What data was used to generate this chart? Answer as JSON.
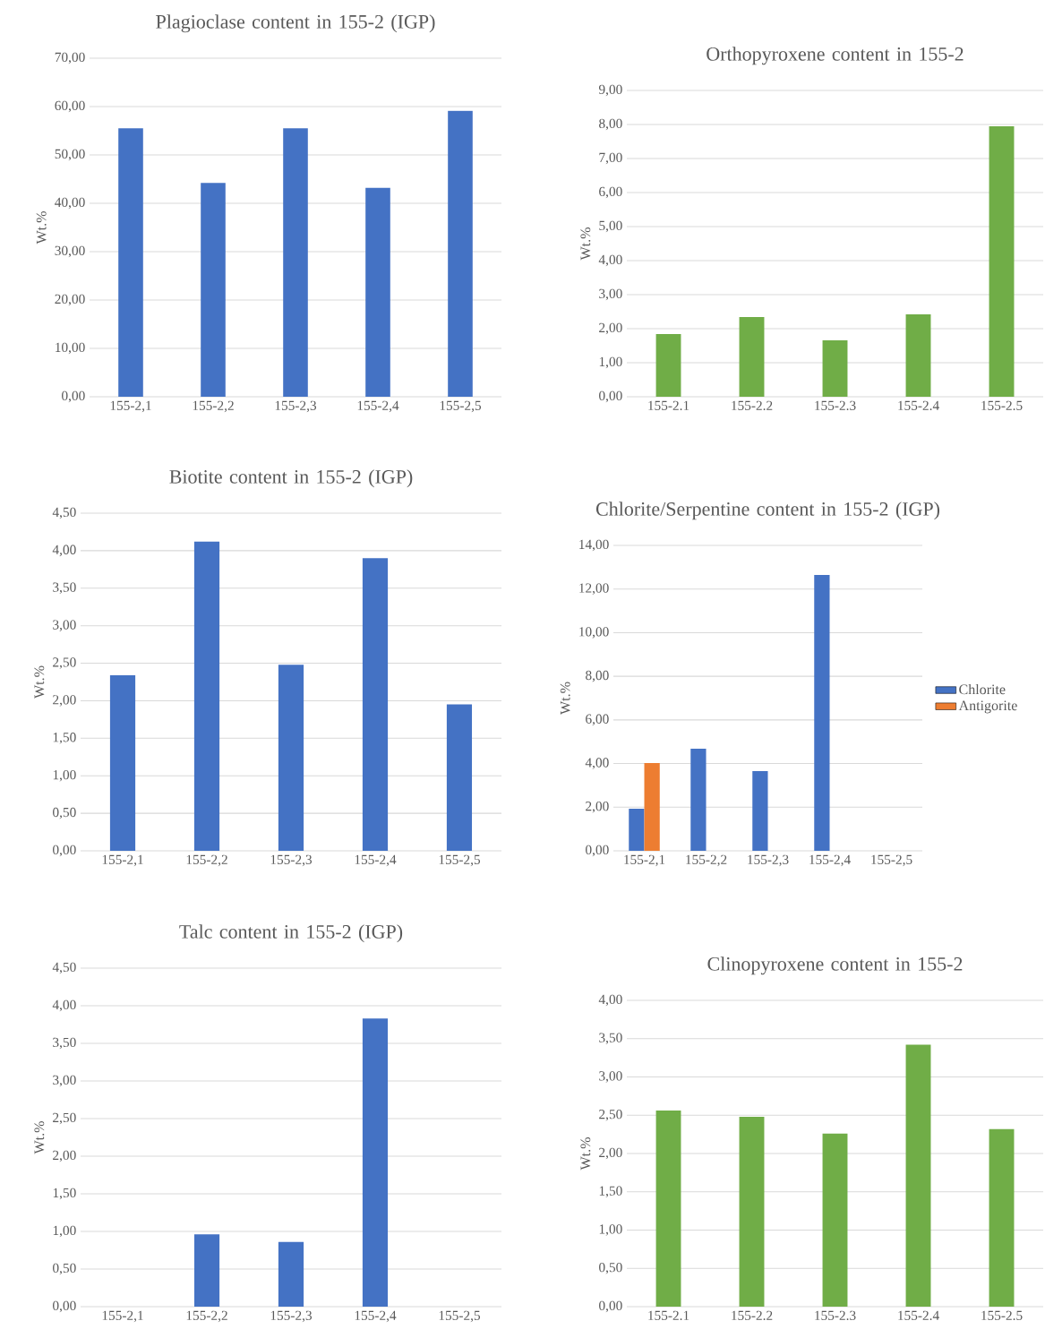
{
  "chart_data": [
    {
      "type": "bar",
      "title": "Plagioclase content in 155-2 (IGP)",
      "ylabel": "Wt.%",
      "categories": [
        "155-2,1",
        "155-2,2",
        "155-2,3",
        "155-2,4",
        "155-2,5"
      ],
      "color": "#4472c4",
      "values": [
        55.5,
        44.2,
        55.5,
        43.2,
        59.1
      ],
      "ylim": [
        0,
        70
      ],
      "yticks": [
        {
          "value": 0,
          "label": "0,00"
        },
        {
          "value": 10,
          "label": "10,00"
        },
        {
          "value": 20,
          "label": "20,00"
        },
        {
          "value": 30,
          "label": "30,00"
        },
        {
          "value": 40,
          "label": "40,00"
        },
        {
          "value": 50,
          "label": "50,00"
        },
        {
          "value": 60,
          "label": "60,00"
        },
        {
          "value": 70,
          "label": "70,00"
        }
      ],
      "grid": "y"
    },
    {
      "type": "bar",
      "title": "Orthopyroxene content in 155-2",
      "ylabel": "Wt.%",
      "categories": [
        "155-2.1",
        "155-2.2",
        "155-2.3",
        "155-2.4",
        "155-2.5"
      ],
      "color": "#70ad47",
      "values": [
        1.84,
        2.34,
        1.66,
        2.42,
        7.95
      ],
      "ylim": [
        0,
        9
      ],
      "yticks": [
        {
          "value": 0,
          "label": "0,00"
        },
        {
          "value": 1,
          "label": "1,00"
        },
        {
          "value": 2,
          "label": "2,00"
        },
        {
          "value": 3,
          "label": "3,00"
        },
        {
          "value": 4,
          "label": "4,00"
        },
        {
          "value": 5,
          "label": "5,00"
        },
        {
          "value": 6,
          "label": "6,00"
        },
        {
          "value": 7,
          "label": "7,00"
        },
        {
          "value": 8,
          "label": "8,00"
        },
        {
          "value": 9,
          "label": "9,00"
        }
      ],
      "grid": "y"
    },
    {
      "type": "bar",
      "title": "Biotite content in 155-2 (IGP)",
      "ylabel": "Wt.%",
      "categories": [
        "155-2,1",
        "155-2,2",
        "155-2,3",
        "155-2,4",
        "155-2,5"
      ],
      "color": "#4472c4",
      "values": [
        2.34,
        4.12,
        2.48,
        3.9,
        1.95
      ],
      "ylim": [
        0,
        4.5
      ],
      "yticks": [
        {
          "value": 0,
          "label": "0,00"
        },
        {
          "value": 0.5,
          "label": "0,50"
        },
        {
          "value": 1,
          "label": "1,00"
        },
        {
          "value": 1.5,
          "label": "1,50"
        },
        {
          "value": 2,
          "label": "2,00"
        },
        {
          "value": 2.5,
          "label": "2,50"
        },
        {
          "value": 3,
          "label": "3,00"
        },
        {
          "value": 3.5,
          "label": "3,50"
        },
        {
          "value": 4,
          "label": "4,00"
        },
        {
          "value": 4.5,
          "label": "4,50"
        }
      ],
      "grid": "y"
    },
    {
      "type": "bar",
      "title": "Chlorite/Serpentine content in 155-2 (IGP)",
      "ylabel": "Wt.%",
      "categories": [
        "155-2,1",
        "155-2,2",
        "155-2,3",
        "155-2,4",
        "155-2,5"
      ],
      "series": [
        {
          "name": "Chlorite",
          "color": "#4472c4",
          "values": [
            1.93,
            4.68,
            3.65,
            12.64,
            null
          ]
        },
        {
          "name": "Antigorite",
          "color": "#ed7d31",
          "values": [
            4.02,
            null,
            null,
            null,
            null
          ]
        }
      ],
      "ylim": [
        0,
        14
      ],
      "yticks": [
        {
          "value": 0,
          "label": "0,00"
        },
        {
          "value": 2,
          "label": "2,00"
        },
        {
          "value": 4,
          "label": "4,00"
        },
        {
          "value": 6,
          "label": "6,00"
        },
        {
          "value": 8,
          "label": "8,00"
        },
        {
          "value": 10,
          "label": "10,00"
        },
        {
          "value": 12,
          "label": "12,00"
        },
        {
          "value": 14,
          "label": "14,00"
        }
      ],
      "grid": "y",
      "legend": "right"
    },
    {
      "type": "bar",
      "title": "Talc content in 155-2 (IGP)",
      "ylabel": "Wt.%",
      "categories": [
        "155-2,1",
        "155-2,2",
        "155-2,3",
        "155-2,4",
        "155-2,5"
      ],
      "color": "#4472c4",
      "values": [
        null,
        0.96,
        0.86,
        3.83,
        null
      ],
      "ylim": [
        0,
        4.5
      ],
      "yticks": [
        {
          "value": 0,
          "label": "0,00"
        },
        {
          "value": 0.5,
          "label": "0,50"
        },
        {
          "value": 1,
          "label": "1,00"
        },
        {
          "value": 1.5,
          "label": "1,50"
        },
        {
          "value": 2,
          "label": "2,00"
        },
        {
          "value": 2.5,
          "label": "2,50"
        },
        {
          "value": 3,
          "label": "3,00"
        },
        {
          "value": 3.5,
          "label": "3,50"
        },
        {
          "value": 4,
          "label": "4,00"
        },
        {
          "value": 4.5,
          "label": "4,50"
        }
      ],
      "grid": "y"
    },
    {
      "type": "bar",
      "title": "Clinopyroxene content in 155-2",
      "ylabel": "Wt.%",
      "categories": [
        "155-2.1",
        "155-2.2",
        "155-2.3",
        "155-2.4",
        "155-2.5"
      ],
      "color": "#70ad47",
      "values": [
        2.56,
        2.48,
        2.26,
        3.42,
        2.32
      ],
      "ylim": [
        0,
        4
      ],
      "yticks": [
        {
          "value": 0,
          "label": "0,00"
        },
        {
          "value": 0.5,
          "label": "0,50"
        },
        {
          "value": 1,
          "label": "1,00"
        },
        {
          "value": 1.5,
          "label": "1,50"
        },
        {
          "value": 2,
          "label": "2,00"
        },
        {
          "value": 2.5,
          "label": "2,50"
        },
        {
          "value": 3,
          "label": "3,00"
        },
        {
          "value": 3.5,
          "label": "3,50"
        },
        {
          "value": 4,
          "label": "4,00"
        }
      ],
      "grid": "y"
    }
  ]
}
